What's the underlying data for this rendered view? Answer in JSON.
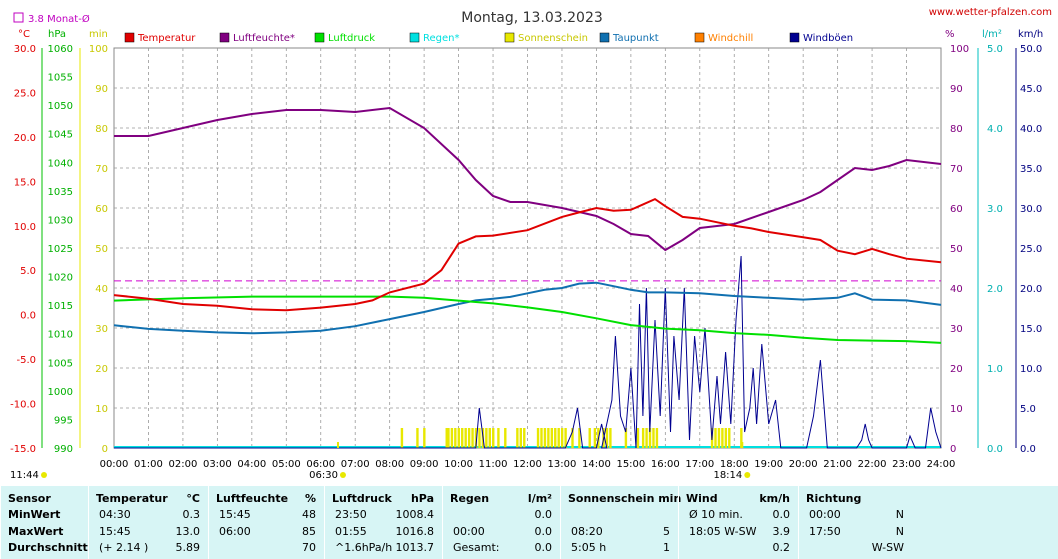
{
  "header": {
    "title": "Montag, 13.03.2023",
    "site": "www.wetter-pfalzen.com",
    "monthly_avg": "3.8 Monat-Ø"
  },
  "axis_units": {
    "celsius": "°C",
    "hpa": "hPa",
    "min": "min",
    "percent": "%",
    "lm2": "l/m²",
    "kmh": "km/h"
  },
  "legend": [
    {
      "label": "Temperatur",
      "color": "#e00000"
    },
    {
      "label": "Luftfeuchte*",
      "color": "#800080"
    },
    {
      "label": "Luftdruck",
      "color": "#00e000"
    },
    {
      "label": "Regen*",
      "color": "#00e0e0"
    },
    {
      "label": "Sonnenschein",
      "color": "#e8e800"
    },
    {
      "label": "Taupunkt",
      "color": "#1070b0"
    },
    {
      "label": "Windchill",
      "color": "#ff8000"
    },
    {
      "label": "Windböen",
      "color": "#000090"
    }
  ],
  "chart_data": {
    "type": "line",
    "x_ticks": [
      "00:00",
      "01:00",
      "02:00",
      "03:00",
      "04:00",
      "05:00",
      "06:00",
      "07:00",
      "08:00",
      "09:00",
      "10:00",
      "11:00",
      "12:00",
      "13:00",
      "14:00",
      "15:00",
      "16:00",
      "17:00",
      "18:00",
      "19:00",
      "20:00",
      "21:00",
      "22:00",
      "23:00",
      "24:00"
    ],
    "y_temp_ticks": [
      "30.0",
      "25.0",
      "20.0",
      "15.0",
      "10.0",
      "5.0",
      "0.0",
      "-5.0",
      "-10.0",
      "-15.0"
    ],
    "y_hpa_ticks": [
      "1060",
      "1055",
      "1050",
      "1045",
      "1040",
      "1035",
      "1030",
      "1025",
      "1020",
      "1015",
      "1010",
      "1005",
      "1000",
      "995",
      "990"
    ],
    "y_min_ticks": [
      "100",
      "90",
      "80",
      "70",
      "60",
      "50",
      "40",
      "30",
      "20",
      "10",
      "0"
    ],
    "y_pct_ticks": [
      "100",
      "90",
      "80",
      "70",
      "60",
      "50",
      "40",
      "30",
      "20",
      "10",
      "0"
    ],
    "y_rain_ticks": [
      "5.0",
      "4.0",
      "3.0",
      "2.0",
      "1.0",
      "0.0"
    ],
    "y_wind_ticks": [
      "50.0",
      "45.0",
      "40.0",
      "35.0",
      "30.0",
      "25.0",
      "20.0",
      "15.0",
      "10.0",
      "5.0",
      "0.0"
    ],
    "temp_range": [
      -15,
      30
    ],
    "hpa_range": [
      990,
      1060
    ],
    "pct_range": [
      0,
      100
    ],
    "wind_range": [
      0,
      50
    ],
    "monthly_avg_temp": 3.8,
    "sunrise": "06:30",
    "sunset": "18:14",
    "moon_left": "11:44",
    "series": [
      {
        "name": "Temperatur",
        "unit": "°C",
        "points": [
          [
            0,
            2.2
          ],
          [
            1,
            1.8
          ],
          [
            2,
            1.2
          ],
          [
            3,
            1.0
          ],
          [
            4,
            0.6
          ],
          [
            5,
            0.5
          ],
          [
            6,
            0.8
          ],
          [
            7,
            1.2
          ],
          [
            7.5,
            1.6
          ],
          [
            8,
            2.5
          ],
          [
            9,
            3.5
          ],
          [
            9.5,
            5
          ],
          [
            10,
            8.0
          ],
          [
            10.5,
            8.8
          ],
          [
            11,
            8.9
          ],
          [
            12,
            9.5
          ],
          [
            13,
            11.0
          ],
          [
            13.5,
            11.5
          ],
          [
            14,
            12.0
          ],
          [
            14.5,
            11.7
          ],
          [
            15,
            11.8
          ],
          [
            15.7,
            13.0
          ],
          [
            16,
            12.2
          ],
          [
            16.5,
            11.0
          ],
          [
            17,
            10.8
          ],
          [
            18,
            10.0
          ],
          [
            18.5,
            9.7
          ],
          [
            19,
            9.3
          ],
          [
            20,
            8.7
          ],
          [
            20.5,
            8.4
          ],
          [
            21,
            7.2
          ],
          [
            21.5,
            6.8
          ],
          [
            22,
            7.4
          ],
          [
            22.5,
            6.8
          ],
          [
            23,
            6.3
          ],
          [
            24,
            5.9
          ]
        ]
      },
      {
        "name": "Luftfeuchte*",
        "unit": "%",
        "points": [
          [
            0,
            78
          ],
          [
            1,
            78
          ],
          [
            2,
            80
          ],
          [
            3,
            82
          ],
          [
            4,
            83.5
          ],
          [
            5,
            84.5
          ],
          [
            6,
            84.5
          ],
          [
            7,
            84
          ],
          [
            8,
            85
          ],
          [
            9,
            80
          ],
          [
            10,
            72
          ],
          [
            10.5,
            67
          ],
          [
            11,
            63
          ],
          [
            11.5,
            61.5
          ],
          [
            12,
            61.5
          ],
          [
            13,
            60
          ],
          [
            14,
            58
          ],
          [
            14.5,
            56
          ],
          [
            15,
            53.5
          ],
          [
            15.5,
            53
          ],
          [
            16,
            49.5
          ],
          [
            16.5,
            52
          ],
          [
            17,
            55
          ],
          [
            17.5,
            55.5
          ],
          [
            18,
            56
          ],
          [
            19,
            59
          ],
          [
            20,
            62
          ],
          [
            20.5,
            64
          ],
          [
            21,
            67
          ],
          [
            21.5,
            70
          ],
          [
            22,
            69.5
          ],
          [
            22.5,
            70.5
          ],
          [
            23,
            72
          ],
          [
            24,
            71
          ]
        ]
      },
      {
        "name": "Luftdruck",
        "unit": "hPa",
        "points": [
          [
            0,
            1015.8
          ],
          [
            2,
            1016.2
          ],
          [
            4,
            1016.5
          ],
          [
            6,
            1016.5
          ],
          [
            8,
            1016.5
          ],
          [
            9,
            1016.3
          ],
          [
            10,
            1015.8
          ],
          [
            11,
            1015.3
          ],
          [
            12,
            1014.6
          ],
          [
            13,
            1013.8
          ],
          [
            14,
            1012.7
          ],
          [
            15,
            1011.5
          ],
          [
            16,
            1010.9
          ],
          [
            17,
            1010.6
          ],
          [
            18,
            1010.1
          ],
          [
            19,
            1009.8
          ],
          [
            20,
            1009.3
          ],
          [
            21,
            1008.9
          ],
          [
            22,
            1008.8
          ],
          [
            23,
            1008.7
          ],
          [
            24,
            1008.4
          ]
        ]
      },
      {
        "name": "Taupunkt",
        "unit": "°C",
        "points": [
          [
            0,
            -1.2
          ],
          [
            1,
            -1.6
          ],
          [
            2,
            -1.8
          ],
          [
            3,
            -2.0
          ],
          [
            4,
            -2.1
          ],
          [
            5,
            -2.0
          ],
          [
            6,
            -1.8
          ],
          [
            7,
            -1.3
          ],
          [
            8,
            -0.5
          ],
          [
            9,
            0.3
          ],
          [
            10,
            1.2
          ],
          [
            10.5,
            1.6
          ],
          [
            11,
            1.8
          ],
          [
            11.5,
            2.0
          ],
          [
            12,
            2.4
          ],
          [
            12.5,
            2.8
          ],
          [
            13,
            3.0
          ],
          [
            13.5,
            3.5
          ],
          [
            14,
            3.6
          ],
          [
            14.5,
            3.2
          ],
          [
            15,
            2.8
          ],
          [
            15.5,
            2.5
          ],
          [
            16,
            2.5
          ],
          [
            17,
            2.4
          ],
          [
            18,
            2.1
          ],
          [
            19,
            1.9
          ],
          [
            20,
            1.7
          ],
          [
            21,
            1.9
          ],
          [
            21.5,
            2.4
          ],
          [
            22,
            1.7
          ],
          [
            23,
            1.6
          ],
          [
            24,
            1.1
          ]
        ]
      },
      {
        "name": "Windböen",
        "unit": "km/h",
        "points": [
          [
            0,
            0
          ],
          [
            10.5,
            0
          ],
          [
            10.6,
            5
          ],
          [
            10.75,
            0
          ],
          [
            13.1,
            0
          ],
          [
            13.3,
            2
          ],
          [
            13.45,
            5
          ],
          [
            13.6,
            0
          ],
          [
            14,
            0
          ],
          [
            14.15,
            3
          ],
          [
            14.3,
            0
          ],
          [
            14.15,
            0
          ],
          [
            14.45,
            6
          ],
          [
            14.55,
            14
          ],
          [
            14.7,
            4
          ],
          [
            14.85,
            2
          ],
          [
            15.0,
            10
          ],
          [
            15.15,
            0
          ],
          [
            15.25,
            18
          ],
          [
            15.35,
            4
          ],
          [
            15.45,
            20
          ],
          [
            15.55,
            2
          ],
          [
            15.7,
            16
          ],
          [
            15.85,
            4
          ],
          [
            16.0,
            20
          ],
          [
            16.15,
            2
          ],
          [
            16.25,
            14
          ],
          [
            16.4,
            6
          ],
          [
            16.55,
            20
          ],
          [
            16.7,
            1
          ],
          [
            16.85,
            14
          ],
          [
            17.0,
            7
          ],
          [
            17.15,
            15
          ],
          [
            17.35,
            1
          ],
          [
            17.5,
            9
          ],
          [
            17.6,
            3
          ],
          [
            17.75,
            12
          ],
          [
            17.9,
            3
          ],
          [
            18.05,
            16
          ],
          [
            18.2,
            24
          ],
          [
            18.3,
            2
          ],
          [
            18.45,
            5
          ],
          [
            18.55,
            10
          ],
          [
            18.65,
            3
          ],
          [
            18.8,
            13
          ],
          [
            19,
            3
          ],
          [
            19.2,
            6
          ],
          [
            19.35,
            0
          ],
          [
            20.1,
            0
          ],
          [
            20.3,
            4
          ],
          [
            20.5,
            11
          ],
          [
            20.7,
            0
          ],
          [
            21.55,
            0
          ],
          [
            21.7,
            1
          ],
          [
            21.8,
            3
          ],
          [
            21.9,
            1
          ],
          [
            22,
            0
          ],
          [
            23.0,
            0
          ],
          [
            23.1,
            1.5
          ],
          [
            23.25,
            0
          ],
          [
            23.55,
            0
          ],
          [
            23.7,
            5
          ],
          [
            23.85,
            2
          ],
          [
            24,
            0
          ]
        ]
      }
    ],
    "sunshine_minutes": [
      [
        8.35,
        1
      ],
      [
        8.8,
        1
      ],
      [
        9.0,
        1
      ],
      [
        9.65,
        1
      ],
      [
        9.7,
        1
      ],
      [
        9.8,
        1
      ],
      [
        9.9,
        1
      ],
      [
        10.0,
        1
      ],
      [
        10.1,
        1
      ],
      [
        10.2,
        1
      ],
      [
        10.3,
        1
      ],
      [
        10.4,
        1
      ],
      [
        10.5,
        1
      ],
      [
        10.6,
        1
      ],
      [
        10.7,
        1
      ],
      [
        10.8,
        1
      ],
      [
        10.9,
        1
      ],
      [
        11.0,
        1
      ],
      [
        11.15,
        1
      ],
      [
        11.35,
        1
      ],
      [
        11.7,
        1
      ],
      [
        11.8,
        1
      ],
      [
        11.9,
        1
      ],
      [
        12.3,
        1
      ],
      [
        12.4,
        1
      ],
      [
        12.5,
        1
      ],
      [
        12.6,
        1
      ],
      [
        12.7,
        1
      ],
      [
        12.8,
        1
      ],
      [
        12.9,
        1
      ],
      [
        13.0,
        1
      ],
      [
        13.1,
        1
      ],
      [
        13.3,
        1
      ],
      [
        13.5,
        1
      ],
      [
        13.8,
        1
      ],
      [
        13.95,
        1
      ],
      [
        14.05,
        1
      ],
      [
        14.2,
        1
      ],
      [
        14.3,
        1
      ],
      [
        14.4,
        1
      ],
      [
        14.85,
        1
      ],
      [
        15.2,
        1
      ],
      [
        15.35,
        1
      ],
      [
        15.45,
        1
      ],
      [
        15.55,
        1
      ],
      [
        15.65,
        1
      ],
      [
        15.75,
        1
      ],
      [
        17.35,
        1
      ],
      [
        17.45,
        1
      ],
      [
        17.55,
        1
      ],
      [
        17.65,
        1
      ],
      [
        17.75,
        1
      ],
      [
        17.85,
        1
      ],
      [
        18.2,
        1
      ]
    ]
  },
  "stats": {
    "columns": [
      {
        "head": "Sensor",
        "head_unit": "",
        "rows": [
          [
            "MinWert",
            "",
            ""
          ],
          [
            "MaxWert",
            "",
            ""
          ],
          [
            "Durchschnitt",
            "",
            ""
          ]
        ]
      },
      {
        "head": "Temperatur",
        "head_unit": "°C",
        "rows": [
          [
            "04:30",
            "0.3"
          ],
          [
            "15:45",
            "13.0"
          ],
          [
            "(+ 2.14 )",
            "5.89"
          ]
        ]
      },
      {
        "head": "Luftfeuchte",
        "head_unit": "%",
        "rows": [
          [
            "15:45",
            "48"
          ],
          [
            "06:00",
            "85"
          ],
          [
            "",
            "70"
          ]
        ]
      },
      {
        "head": "Luftdruck",
        "head_unit": "hPa",
        "rows": [
          [
            "23:50",
            "1008.4"
          ],
          [
            "01:55",
            "1016.8"
          ],
          [
            "^1.6hPa/h",
            "1013.7"
          ]
        ]
      },
      {
        "head": "Regen",
        "head_unit": "l/m²",
        "rows": [
          [
            "",
            "0.0"
          ],
          [
            "00:00",
            "0.0"
          ],
          [
            "Gesamt:",
            "0.0"
          ]
        ]
      },
      {
        "head": "Sonnenschein min",
        "head_unit": "",
        "rows": [
          [
            "",
            ""
          ],
          [
            "08:20",
            "5"
          ],
          [
            "5:05 h",
            "1"
          ]
        ]
      },
      {
        "head": "Wind",
        "head_unit": "km/h",
        "rows": [
          [
            "Ø 10 min.",
            "0.0"
          ],
          [
            "18:05  W-SW",
            "3.9"
          ],
          [
            "",
            "0.2"
          ]
        ]
      },
      {
        "head": "Richtung",
        "head_unit": "",
        "rows": [
          [
            "00:00",
            "N"
          ],
          [
            "17:50",
            "N"
          ],
          [
            "",
            "W-SW"
          ]
        ]
      }
    ]
  }
}
